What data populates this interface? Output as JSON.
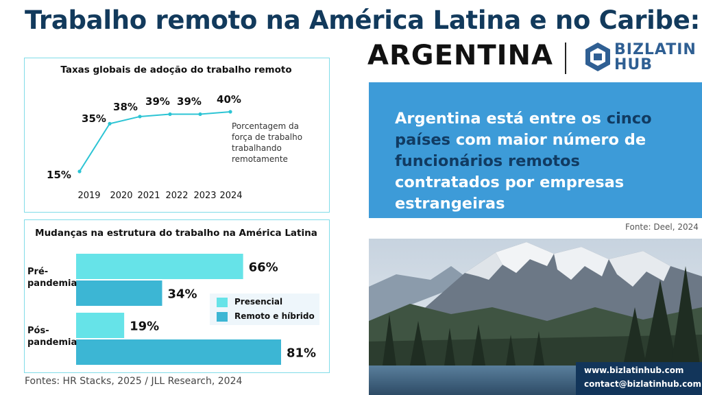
{
  "header": {
    "title": "Trabalho remoto na América Latina e no Caribe:",
    "country": "ARGENTINA",
    "logo_line1": "BIZLATIN",
    "logo_line2": "HUB"
  },
  "colors": {
    "title_blue": "#123a5c",
    "line_color": "#2cc4d4",
    "bar_light": "#66e3e8",
    "bar_dark": "#3cb6d4",
    "panel_border": "#7fdce8",
    "blue_box": "#3d9bd8",
    "highlight_text": "#113b62",
    "contact_bg": "#12355a"
  },
  "chart_data": [
    {
      "type": "line",
      "title": "Taxas globais de adoção do trabalho remoto",
      "x": [
        "2019",
        "2020",
        "2021",
        "2022",
        "2023",
        "2024"
      ],
      "series": [
        {
          "values": [
            15,
            35,
            38,
            39,
            39,
            40
          ],
          "labels": [
            "15%",
            "35%",
            "38%",
            "39%",
            "39%",
            "40%"
          ]
        }
      ],
      "annotation": "Porcentagem da força de trabalho trabalhando remotamente",
      "grid": false
    },
    {
      "type": "bar",
      "orientation": "horizontal",
      "title": "Mudanças na estrutura do trabalho na América Latina",
      "categories": [
        "Pré-pandemia",
        "Pós-pandemia"
      ],
      "series": [
        {
          "name": "Presencial",
          "values": [
            66,
            19
          ],
          "labels": [
            "66%",
            "19%"
          ]
        },
        {
          "name": "Remoto e híbrido",
          "values": [
            34,
            81
          ],
          "labels": [
            "34%",
            "81%"
          ]
        }
      ],
      "xlim": [
        0,
        81
      ],
      "legend": "right",
      "grid": false
    }
  ],
  "category_labels": {
    "pre_line1": "Pré-",
    "pre_line2": "pandemia",
    "pos_line1": "Pós-",
    "pos_line2": "pandemia"
  },
  "sources": "Fontes: HR Stacks, 2025 / JLL Research, 2024",
  "callout": {
    "part1": "Argentina está entre os ",
    "part2": "cinco países",
    "part3": " com maior número de ",
    "part4": "funcionários remotos",
    "part5": " contratados por empresas estrangeiras"
  },
  "callout_source": "Fonte: Deel, 2024",
  "contact": {
    "website": "www.bizlatinhub.com",
    "email": "contact@bizlatinhub.com"
  }
}
